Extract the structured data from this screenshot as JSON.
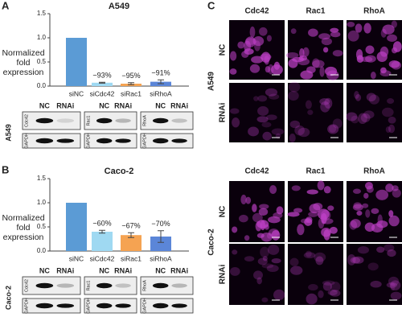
{
  "panel_labels": [
    "A",
    "B",
    "C"
  ],
  "chart_data": [
    {
      "type": "bar",
      "title": "A549",
      "ylabel": "Normalized fold expression",
      "categories": [
        "siNC",
        "siCdc42",
        "siRac1",
        "siRhoA"
      ],
      "values": [
        1.0,
        0.07,
        0.05,
        0.09
      ],
      "errors": [
        null,
        0.01,
        0.02,
        0.04
      ],
      "colors": [
        "#5b9bd5",
        "#9fd9f2",
        "#f5a352",
        "#5b86d8"
      ],
      "annotations": [
        null,
        "−93%",
        "−95%",
        "−91%"
      ],
      "ylim": [
        0,
        1.5
      ],
      "yticks": [
        {
          "value": 0,
          "label": "0.0"
        },
        0.5,
        {
          "value": 1,
          "label": "1.0"
        },
        1.5
      ]
    },
    {
      "type": "bar",
      "title": "Caco-2",
      "ylabel": "Normalized fold expression",
      "categories": [
        "siNC",
        "siCdc42",
        "siRac1",
        "siRhoA"
      ],
      "values": [
        1.0,
        0.4,
        0.33,
        0.3
      ],
      "errors": [
        null,
        0.03,
        0.05,
        0.12
      ],
      "colors": [
        "#5b9bd5",
        "#9fd9f2",
        "#f5a352",
        "#5b86d8"
      ],
      "annotations": [
        null,
        "−60%",
        "−67%",
        "−70%"
      ],
      "ylim": [
        0,
        1.5
      ],
      "yticks": [
        {
          "value": 0,
          "label": "0.0"
        },
        0.5,
        {
          "value": 1,
          "label": "1.0"
        },
        1.5
      ]
    }
  ],
  "blots": [
    {
      "cell_line": "A549",
      "lanes": [
        "NC",
        "RNAi"
      ],
      "targets": [
        "Cdc42",
        "Rac1",
        "RhoA"
      ],
      "loading_control": "GAPDH"
    },
    {
      "cell_line": "Caco-2",
      "lanes": [
        "NC",
        "RNAi"
      ],
      "targets": [
        "Cdc42",
        "Rac1",
        "RhoA"
      ],
      "loading_control": "GAPDH"
    }
  ],
  "microscopy": {
    "columns": [
      "Cdc42",
      "Rac1",
      "RhoA"
    ],
    "rows": [
      "NC",
      "RNAi"
    ],
    "cell_lines": [
      "A549",
      "Caco-2"
    ]
  }
}
